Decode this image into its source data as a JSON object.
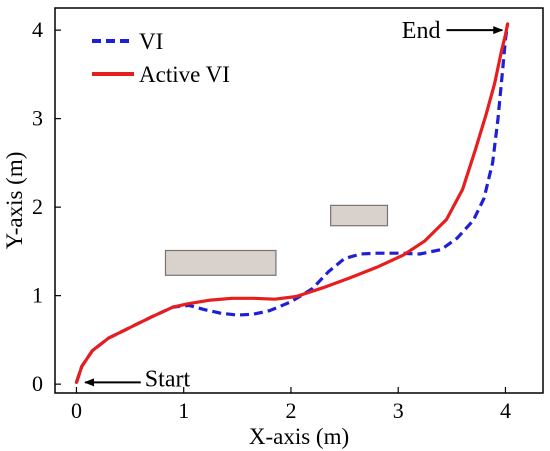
{
  "chart_data": {
    "type": "line",
    "xlabel": "X-axis (m)",
    "ylabel": "Y-axis (m)",
    "xlim": [
      -0.2,
      4.35
    ],
    "ylim": [
      -0.1,
      4.25
    ],
    "x_ticks": [
      "0",
      "1",
      "2",
      "3",
      "4"
    ],
    "y_ticks": [
      "0",
      "1",
      "2",
      "3",
      "4"
    ],
    "grid": false,
    "legend_position": "top-left",
    "series": [
      {
        "name": "VI",
        "color": "#1f1fd6",
        "style": "dashed",
        "points": [
          [
            0,
            0.02
          ],
          [
            0.05,
            0.2
          ],
          [
            0.15,
            0.38
          ],
          [
            0.3,
            0.52
          ],
          [
            0.5,
            0.64
          ],
          [
            0.7,
            0.76
          ],
          [
            0.9,
            0.87
          ],
          [
            1.05,
            0.89
          ],
          [
            1.2,
            0.84
          ],
          [
            1.35,
            0.8
          ],
          [
            1.5,
            0.78
          ],
          [
            1.65,
            0.79
          ],
          [
            1.8,
            0.83
          ],
          [
            2.0,
            0.93
          ],
          [
            2.2,
            1.08
          ],
          [
            2.35,
            1.27
          ],
          [
            2.5,
            1.42
          ],
          [
            2.65,
            1.47
          ],
          [
            2.8,
            1.48
          ],
          [
            3.0,
            1.48
          ],
          [
            3.2,
            1.47
          ],
          [
            3.4,
            1.52
          ],
          [
            3.55,
            1.65
          ],
          [
            3.7,
            1.85
          ],
          [
            3.8,
            2.1
          ],
          [
            3.88,
            2.5
          ],
          [
            3.93,
            3.0
          ],
          [
            3.97,
            3.5
          ],
          [
            4.0,
            3.9
          ],
          [
            4.02,
            4.07
          ]
        ]
      },
      {
        "name": "Active VI",
        "color": "#e61e1e",
        "style": "solid",
        "points": [
          [
            0,
            0.02
          ],
          [
            0.05,
            0.2
          ],
          [
            0.15,
            0.38
          ],
          [
            0.3,
            0.52
          ],
          [
            0.5,
            0.64
          ],
          [
            0.7,
            0.76
          ],
          [
            0.9,
            0.87
          ],
          [
            1.05,
            0.91
          ],
          [
            1.25,
            0.95
          ],
          [
            1.45,
            0.97
          ],
          [
            1.65,
            0.97
          ],
          [
            1.85,
            0.96
          ],
          [
            2.05,
            0.99
          ],
          [
            2.3,
            1.09
          ],
          [
            2.55,
            1.2
          ],
          [
            2.8,
            1.32
          ],
          [
            3.05,
            1.46
          ],
          [
            3.25,
            1.62
          ],
          [
            3.45,
            1.86
          ],
          [
            3.6,
            2.2
          ],
          [
            3.72,
            2.65
          ],
          [
            3.82,
            3.05
          ],
          [
            3.9,
            3.4
          ],
          [
            3.96,
            3.75
          ],
          [
            4.0,
            3.95
          ],
          [
            4.02,
            4.07
          ]
        ]
      }
    ],
    "obstacles": [
      {
        "x": [
          0.83,
          1.86
        ],
        "y": [
          1.23,
          1.51
        ],
        "color": "#d9d2cc"
      },
      {
        "x": [
          2.37,
          2.9
        ],
        "y": [
          1.79,
          2.02
        ],
        "color": "#d9d2cc"
      }
    ],
    "annotations": [
      {
        "text": "Start",
        "arrow_from": [
          0.6,
          0.02
        ],
        "arrow_to": [
          0.08,
          0.02
        ]
      },
      {
        "text": "End",
        "arrow_from": [
          3.45,
          4.0
        ],
        "arrow_to": [
          3.97,
          4.0
        ]
      }
    ]
  }
}
